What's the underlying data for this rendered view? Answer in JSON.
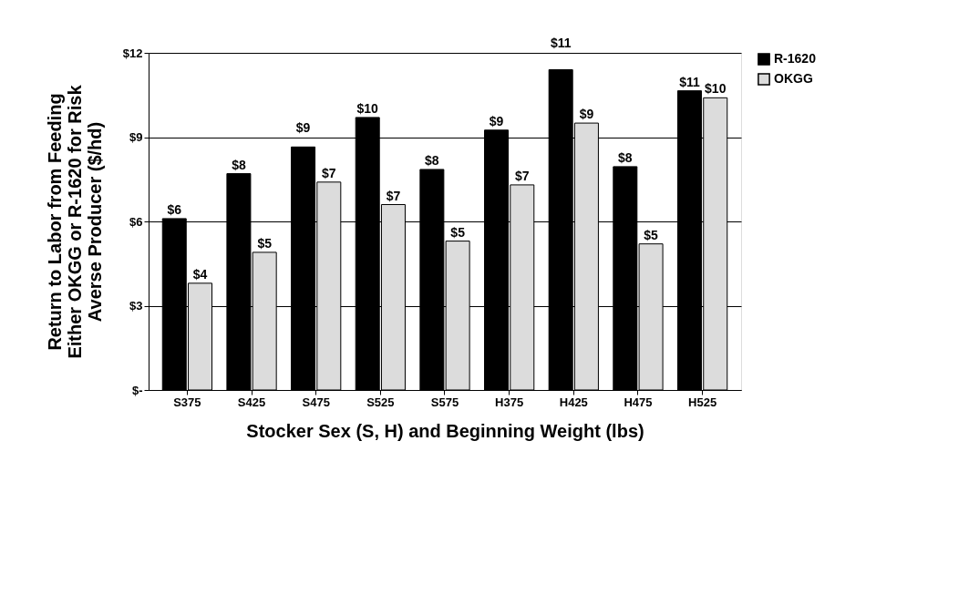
{
  "chart_data": {
    "type": "bar",
    "xlabel": "Stocker Sex (S, H) and Beginning Weight (lbs)",
    "ylabel": "Return to Labor from Feeding Either OKGG or R-1620 for Risk Averse Producer ($/hd)",
    "categories": [
      "S375",
      "S425",
      "S475",
      "S525",
      "S575",
      "H375",
      "H425",
      "H475",
      "H525"
    ],
    "series": [
      {
        "name": "R-1620",
        "color": "#000000",
        "values": [
          6.1,
          7.7,
          8.65,
          9.7,
          7.85,
          9.25,
          11.4,
          7.95,
          10.65
        ],
        "value_labels": [
          "$6",
          "$8",
          "$9",
          "$10",
          "$8",
          "$9",
          "$11",
          "$8",
          "$11"
        ]
      },
      {
        "name": "OKGG",
        "color": "#dcdcdc",
        "values": [
          3.8,
          4.9,
          7.4,
          6.6,
          5.3,
          7.3,
          9.5,
          5.2,
          10.4
        ],
        "value_labels": [
          "$4",
          "$5",
          "$7",
          "$7",
          "$5",
          "$7",
          "$9",
          "$5",
          "$10"
        ]
      }
    ],
    "ylim": [
      0,
      12
    ],
    "yticks": [
      {
        "value": 0,
        "label": "$-"
      },
      {
        "value": 3,
        "label": "$3"
      },
      {
        "value": 6,
        "label": "$6"
      },
      {
        "value": 9,
        "label": "$9"
      },
      {
        "value": 12,
        "label": "$12"
      }
    ],
    "grid": "y",
    "legend": "right"
  }
}
